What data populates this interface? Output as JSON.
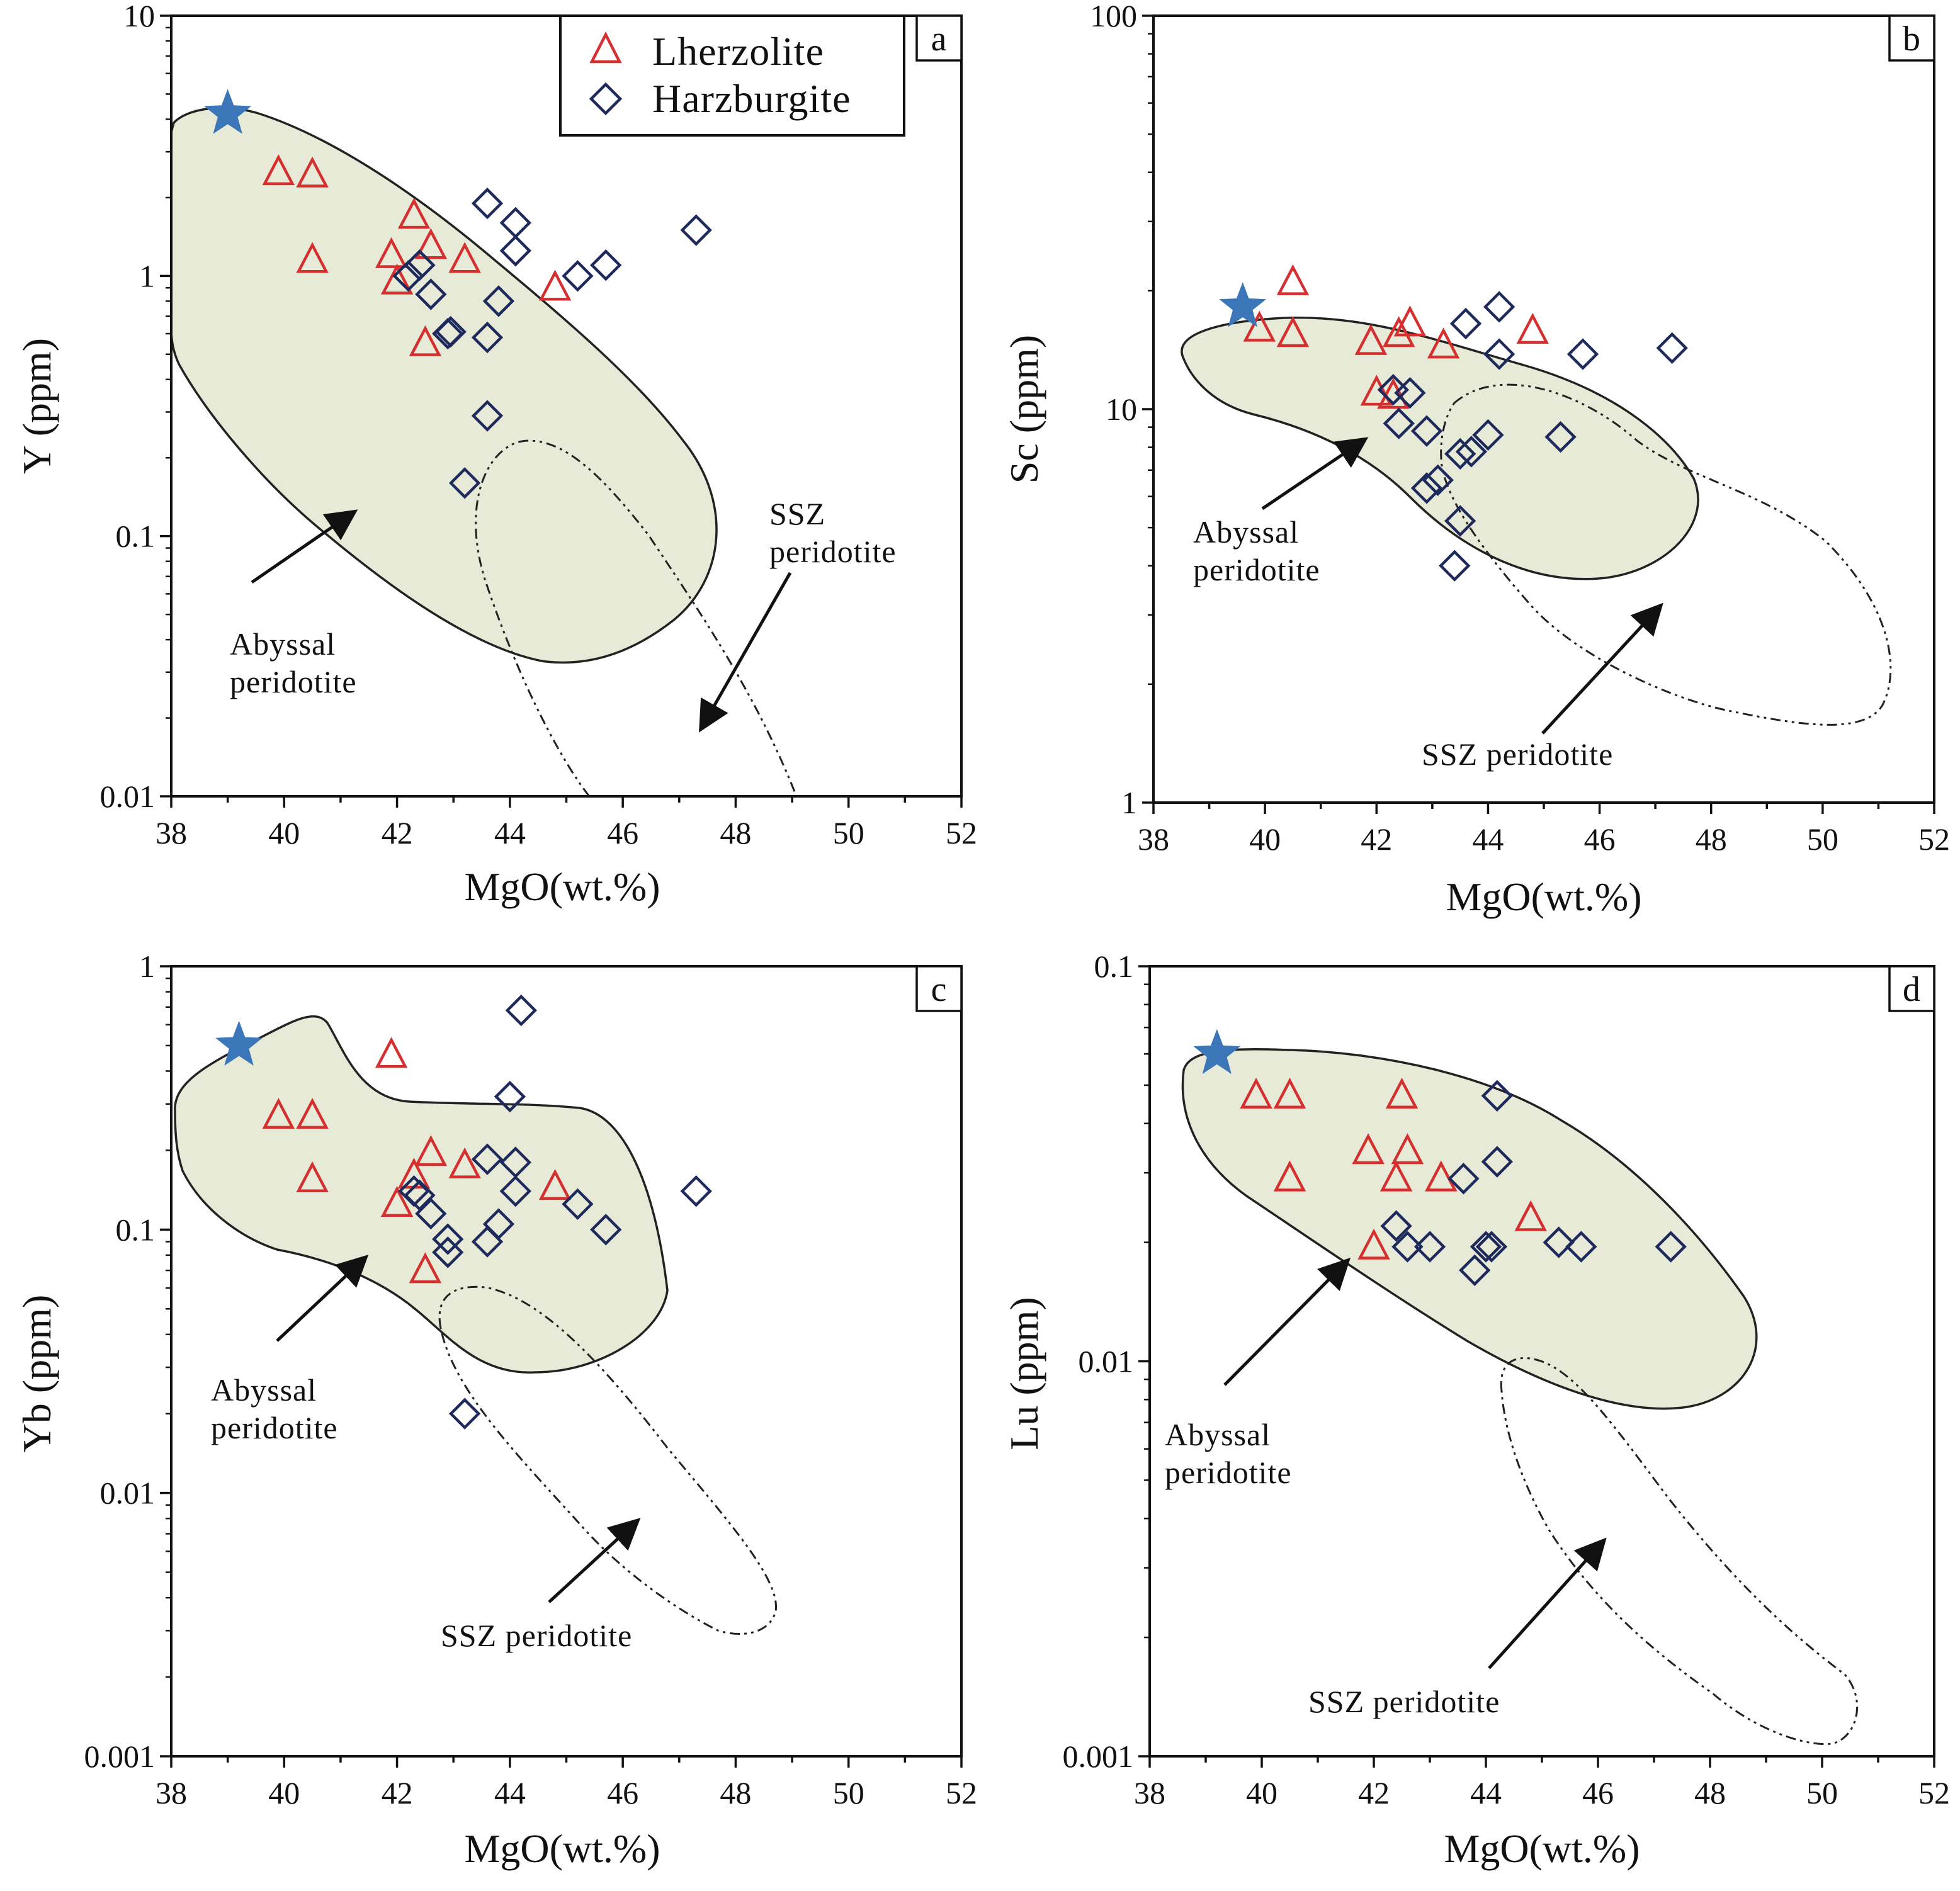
{
  "figure": {
    "colors": {
      "lherzolite": "#d62f2f",
      "harzburgite": "#1f2a5c",
      "star": "#3a76b8",
      "field_fill": "#e6ead6",
      "ink": "#222222"
    },
    "legend": {
      "items": [
        {
          "label": "Lherzolite",
          "marker": "triangle-icon"
        },
        {
          "label": "Harzburgite",
          "marker": "diamond-icon"
        }
      ]
    }
  },
  "chart_data": [
    {
      "id": "a",
      "type": "scatter",
      "panel_label": "a",
      "xlabel": "MgO(wt.%)",
      "ylabel": "Y (ppm)",
      "xlim": [
        38,
        52
      ],
      "ylim": [
        0.01,
        10
      ],
      "yscale": "log",
      "x_ticks": [
        "38",
        "40",
        "42",
        "44",
        "46",
        "48",
        "50",
        "52"
      ],
      "y_ticks": [
        {
          "v": 0.01,
          "label": "0.01"
        },
        {
          "v": 0.1,
          "label": "0.1"
        },
        {
          "v": 1,
          "label": "1"
        },
        {
          "v": 10,
          "label": "10"
        }
      ],
      "star": {
        "x": 39.0,
        "y": 4.2
      },
      "series": [
        {
          "name": "Lherzolite",
          "marker": "triangle",
          "points": [
            [
              39.9,
              2.5
            ],
            [
              40.5,
              2.45
            ],
            [
              40.5,
              1.15
            ],
            [
              41.9,
              1.2
            ],
            [
              42.0,
              0.95
            ],
            [
              42.3,
              1.7
            ],
            [
              42.6,
              1.3
            ],
            [
              43.2,
              1.15
            ],
            [
              44.8,
              0.9
            ],
            [
              42.5,
              0.55
            ]
          ]
        },
        {
          "name": "Harzburgite",
          "marker": "diamond",
          "points": [
            [
              43.6,
              1.9
            ],
            [
              44.1,
              1.6
            ],
            [
              44.1,
              1.25
            ],
            [
              47.3,
              1.5
            ],
            [
              42.4,
              1.1
            ],
            [
              42.2,
              1.0
            ],
            [
              45.2,
              1.0
            ],
            [
              45.7,
              1.1
            ],
            [
              42.6,
              0.85
            ],
            [
              43.8,
              0.8
            ],
            [
              42.9,
              0.6
            ],
            [
              42.95,
              0.61
            ],
            [
              43.6,
              0.58
            ],
            [
              43.6,
              0.29
            ],
            [
              43.2,
              0.16
            ]
          ]
        }
      ],
      "annotations": [
        {
          "lines": [
            "Abyssal",
            "peridotite"
          ]
        },
        {
          "lines": [
            "SSZ",
            "peridotite"
          ]
        }
      ]
    },
    {
      "id": "b",
      "type": "scatter",
      "panel_label": "b",
      "xlabel": "MgO(wt.%)",
      "ylabel": "Sc (ppm)",
      "xlim": [
        38,
        52
      ],
      "ylim": [
        1,
        100
      ],
      "yscale": "log",
      "x_ticks": [
        "38",
        "40",
        "42",
        "44",
        "46",
        "48",
        "50",
        "52"
      ],
      "y_ticks": [
        {
          "v": 1,
          "label": "1"
        },
        {
          "v": 10,
          "label": "10"
        },
        {
          "v": 100,
          "label": "100"
        }
      ],
      "star": {
        "x": 39.6,
        "y": 18.2
      },
      "series": [
        {
          "name": "Lherzolite",
          "marker": "triangle",
          "points": [
            [
              40.5,
              21.0
            ],
            [
              39.9,
              16.0
            ],
            [
              40.5,
              15.5
            ],
            [
              41.9,
              14.8
            ],
            [
              42.4,
              15.5
            ],
            [
              42.6,
              16.5
            ],
            [
              43.2,
              14.5
            ],
            [
              44.8,
              15.8
            ],
            [
              42.0,
              11.0
            ],
            [
              42.3,
              10.8
            ]
          ]
        },
        {
          "name": "Harzburgite",
          "marker": "diamond",
          "points": [
            [
              44.2,
              18.2
            ],
            [
              43.6,
              16.5
            ],
            [
              44.2,
              13.8
            ],
            [
              45.7,
              13.8
            ],
            [
              47.3,
              14.3
            ],
            [
              42.3,
              11.2
            ],
            [
              42.6,
              11.0
            ],
            [
              42.4,
              9.2
            ],
            [
              42.9,
              8.8
            ],
            [
              44.0,
              8.6
            ],
            [
              45.3,
              8.5
            ],
            [
              43.5,
              7.7
            ],
            [
              43.7,
              7.8
            ],
            [
              43.1,
              6.6
            ],
            [
              42.9,
              6.3
            ],
            [
              43.5,
              5.2
            ],
            [
              43.4,
              4.0
            ]
          ]
        }
      ],
      "annotations": [
        {
          "lines": [
            "Abyssal",
            "peridotite"
          ]
        },
        {
          "lines": [
            "SSZ peridotite"
          ]
        }
      ]
    },
    {
      "id": "c",
      "type": "scatter",
      "panel_label": "c",
      "xlabel": "MgO(wt.%)",
      "ylabel": "Yb (ppm)",
      "xlim": [
        38,
        52
      ],
      "ylim": [
        0.001,
        1
      ],
      "yscale": "log",
      "x_ticks": [
        "38",
        "40",
        "42",
        "44",
        "46",
        "48",
        "50",
        "52"
      ],
      "y_ticks": [
        {
          "v": 0.001,
          "label": "0.001"
        },
        {
          "v": 0.01,
          "label": "0.01"
        },
        {
          "v": 0.1,
          "label": "0.1"
        },
        {
          "v": 1,
          "label": "1"
        }
      ],
      "star": {
        "x": 39.2,
        "y": 0.5
      },
      "series": [
        {
          "name": "Lherzolite",
          "marker": "triangle",
          "points": [
            [
              41.9,
              0.46
            ],
            [
              39.9,
              0.27
            ],
            [
              40.5,
              0.27
            ],
            [
              40.5,
              0.155
            ],
            [
              42.6,
              0.195
            ],
            [
              43.2,
              0.175
            ],
            [
              42.3,
              0.16
            ],
            [
              42.0,
              0.125
            ],
            [
              44.8,
              0.145
            ],
            [
              42.5,
              0.07
            ]
          ]
        },
        {
          "name": "Harzburgite",
          "marker": "diamond",
          "points": [
            [
              44.2,
              0.68
            ],
            [
              44.0,
              0.32
            ],
            [
              43.6,
              0.185
            ],
            [
              44.1,
              0.18
            ],
            [
              42.3,
              0.14
            ],
            [
              42.4,
              0.135
            ],
            [
              44.1,
              0.14
            ],
            [
              45.2,
              0.125
            ],
            [
              42.6,
              0.115
            ],
            [
              43.8,
              0.105
            ],
            [
              45.7,
              0.1
            ],
            [
              42.9,
              0.092
            ],
            [
              43.6,
              0.09
            ],
            [
              42.9,
              0.082
            ],
            [
              43.2,
              0.02
            ],
            [
              47.3,
              0.14
            ]
          ]
        }
      ],
      "annotations": [
        {
          "lines": [
            "Abyssal",
            "peridotite"
          ]
        },
        {
          "lines": [
            "SSZ peridotite"
          ]
        }
      ]
    },
    {
      "id": "d",
      "type": "scatter",
      "panel_label": "d",
      "xlabel": "MgO(wt.%)",
      "ylabel": "Lu (ppm)",
      "xlim": [
        38,
        52
      ],
      "ylim": [
        0.001,
        0.1
      ],
      "yscale": "log",
      "x_ticks": [
        "38",
        "40",
        "42",
        "44",
        "46",
        "48",
        "50",
        "52"
      ],
      "y_ticks": [
        {
          "v": 0.001,
          "label": "0.001"
        },
        {
          "v": 0.01,
          "label": "0.01"
        },
        {
          "v": 0.1,
          "label": "0.1"
        }
      ],
      "star": {
        "x": 39.2,
        "y": 0.06
      },
      "series": [
        {
          "name": "Lherzolite",
          "marker": "triangle",
          "points": [
            [
              39.9,
              0.047
            ],
            [
              40.5,
              0.047
            ],
            [
              42.5,
              0.047
            ],
            [
              41.9,
              0.034
            ],
            [
              42.6,
              0.034
            ],
            [
              43.2,
              0.029
            ],
            [
              40.5,
              0.029
            ],
            [
              42.4,
              0.029
            ],
            [
              44.8,
              0.023
            ],
            [
              42.0,
              0.0195
            ]
          ]
        },
        {
          "name": "Harzburgite",
          "marker": "diamond",
          "points": [
            [
              44.2,
              0.047
            ],
            [
              44.2,
              0.032
            ],
            [
              43.6,
              0.029
            ],
            [
              42.4,
              0.022
            ],
            [
              42.6,
              0.0195
            ],
            [
              43.0,
              0.0195
            ],
            [
              44.0,
              0.0195
            ],
            [
              44.1,
              0.0195
            ],
            [
              45.3,
              0.02
            ],
            [
              45.7,
              0.0195
            ],
            [
              47.3,
              0.0195
            ],
            [
              43.8,
              0.017
            ]
          ]
        }
      ],
      "annotations": [
        {
          "lines": [
            "Abyssal",
            "peridotite"
          ]
        },
        {
          "lines": [
            "SSZ peridotite"
          ]
        }
      ]
    }
  ]
}
